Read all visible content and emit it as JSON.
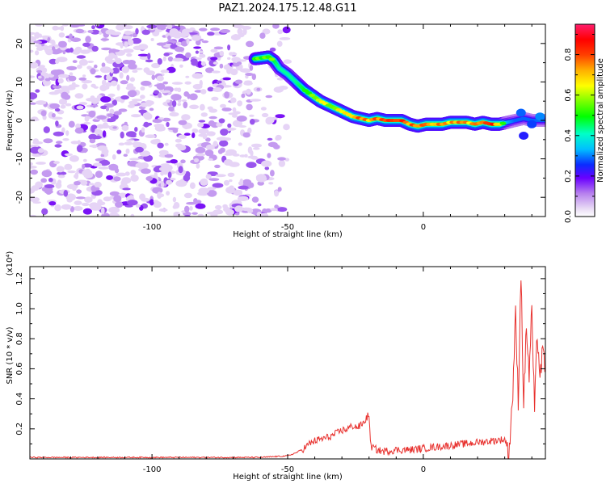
{
  "chart_data": [
    {
      "type": "heatmap",
      "title": "PAZ1.2024.175.12.48.G11",
      "xlabel": "Height of straight line (km)",
      "ylabel": "Frequency (Hz)",
      "xlim": [
        -145,
        45
      ],
      "ylim": [
        -25,
        25
      ],
      "xticks": [
        -100,
        -50,
        0
      ],
      "xtick_labels": [
        "-100",
        "-50",
        "0"
      ],
      "yticks": [
        -20,
        -10,
        0,
        10,
        20
      ],
      "ytick_labels": [
        "-20",
        "-10",
        "0",
        "10",
        "20"
      ],
      "colorbar": {
        "label": "Normalized spectral amplitude",
        "range": [
          0,
          0.95
        ],
        "ticks": [
          0.0,
          0.2,
          0.4,
          0.6,
          0.8
        ],
        "tick_labels": [
          "0.0",
          "0.2",
          "0.4",
          "0.6",
          "0.8"
        ]
      },
      "ridge": {
        "x": [
          -62,
          -57,
          -55,
          -53,
          -50,
          -47,
          -44,
          -41,
          -38,
          -35,
          -32,
          -29,
          -26,
          -23,
          -20,
          -17,
          -14,
          -11,
          -8,
          -5,
          -2,
          1,
          4,
          7,
          10,
          13,
          16,
          19,
          22,
          25,
          28,
          31,
          34,
          37,
          40,
          43,
          45
        ],
        "y": [
          16,
          16.5,
          15.5,
          13.5,
          12,
          10,
          8,
          6.5,
          5,
          4,
          3,
          2,
          1,
          0.5,
          0,
          0.5,
          0,
          0,
          0,
          -1,
          -1.5,
          -1,
          -1,
          -1,
          -0.5,
          -0.5,
          -0.5,
          -1,
          -0.5,
          -1,
          -1,
          -0.5,
          0,
          0.5,
          0,
          0,
          0
        ],
        "amplitude": [
          0.5,
          0.55,
          0.5,
          0.45,
          0.45,
          0.45,
          0.5,
          0.55,
          0.6,
          0.6,
          0.65,
          0.7,
          0.75,
          0.8,
          0.7,
          0.75,
          0.75,
          0.85,
          0.8,
          0.75,
          0.8,
          0.75,
          0.7,
          0.75,
          0.7,
          0.75,
          0.7,
          0.75,
          0.8,
          0.85,
          0.7,
          0.35,
          0.3,
          0.3,
          0.3,
          0.3,
          0.3
        ]
      },
      "noise_region": {
        "xlim": [
          -145,
          -50
        ],
        "amplitude": 0.15
      }
    },
    {
      "type": "line",
      "xlabel": "Height of straight line (km)",
      "ylabel": "SNR (10 * v/v)",
      "multiplier": "(x10⁴)",
      "xlim": [
        -145,
        45
      ],
      "ylim": [
        0,
        1.28
      ],
      "xticks": [
        -100,
        -50,
        0
      ],
      "xtick_labels": [
        "-100",
        "-50",
        "0"
      ],
      "yticks": [
        0.2,
        0.4,
        0.6,
        0.8,
        1.0,
        1.2
      ],
      "ytick_labels": [
        "0.2",
        "0.4",
        "0.6",
        "0.8",
        "1.0",
        "1.2"
      ],
      "series": [
        {
          "color": "#e8322f",
          "x": [
            -145,
            -120,
            -100,
            -80,
            -60,
            -55,
            -50,
            -47,
            -44,
            -42,
            -40,
            -38,
            -36,
            -34,
            -32,
            -30,
            -28,
            -26,
            -24,
            -22,
            -20,
            -19.5,
            -19,
            -17,
            -15,
            -12,
            -10,
            -5,
            0,
            5,
            10,
            15,
            20,
            25,
            30,
            31,
            31.5,
            32,
            33,
            34,
            35,
            36,
            37,
            38,
            39,
            40,
            41,
            42,
            43,
            44,
            45
          ],
          "y": [
            0.01,
            0.01,
            0.01,
            0.01,
            0.01,
            0.015,
            0.02,
            0.04,
            0.07,
            0.1,
            0.12,
            0.13,
            0.14,
            0.15,
            0.17,
            0.19,
            0.2,
            0.22,
            0.21,
            0.24,
            0.3,
            0.1,
            0.08,
            0.06,
            0.05,
            0.055,
            0.06,
            0.06,
            0.07,
            0.08,
            0.09,
            0.1,
            0.11,
            0.12,
            0.13,
            0.09,
            0.04,
            0.15,
            0.45,
            0.95,
            0.4,
            1.25,
            0.35,
            0.9,
            0.55,
            1.0,
            0.3,
            0.85,
            0.55,
            0.7,
            0.6
          ]
        }
      ]
    }
  ]
}
